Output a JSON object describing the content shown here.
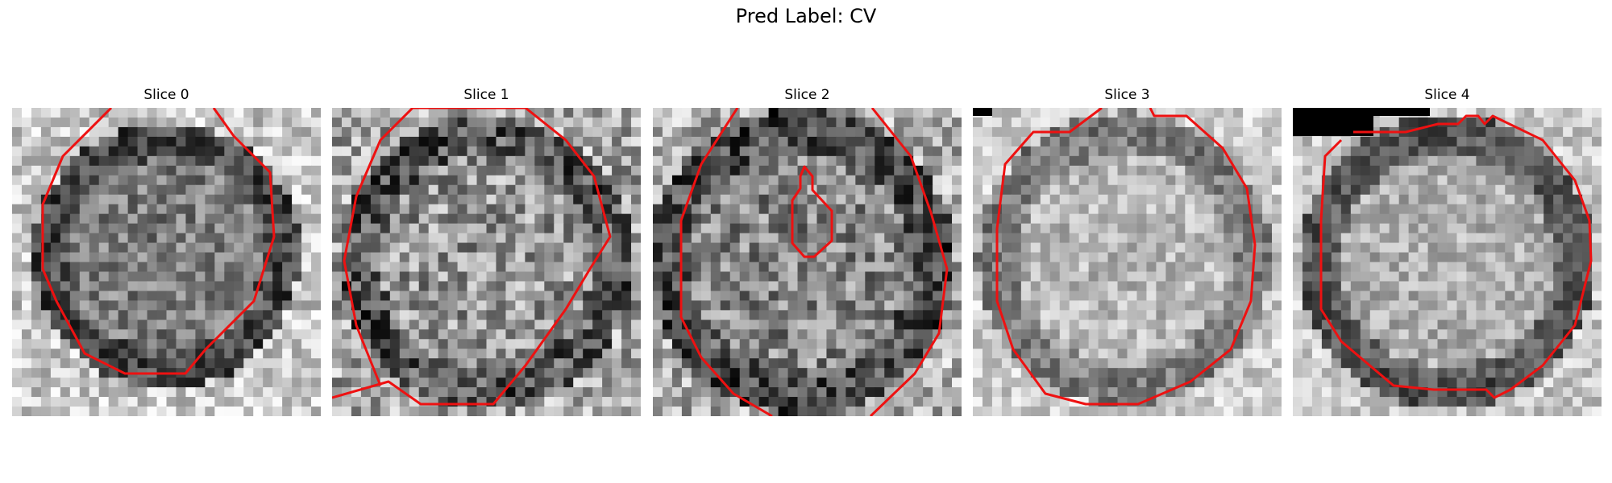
{
  "figure": {
    "title": "Pred Label: CV"
  },
  "panels": [
    {
      "title": "Slice 0"
    },
    {
      "title": "Slice 1"
    },
    {
      "title": "Slice 2"
    },
    {
      "title": "Slice 3"
    },
    {
      "title": "Slice 4"
    }
  ],
  "colors": {
    "contour": "#ee1111",
    "background": "#ffffff"
  }
}
